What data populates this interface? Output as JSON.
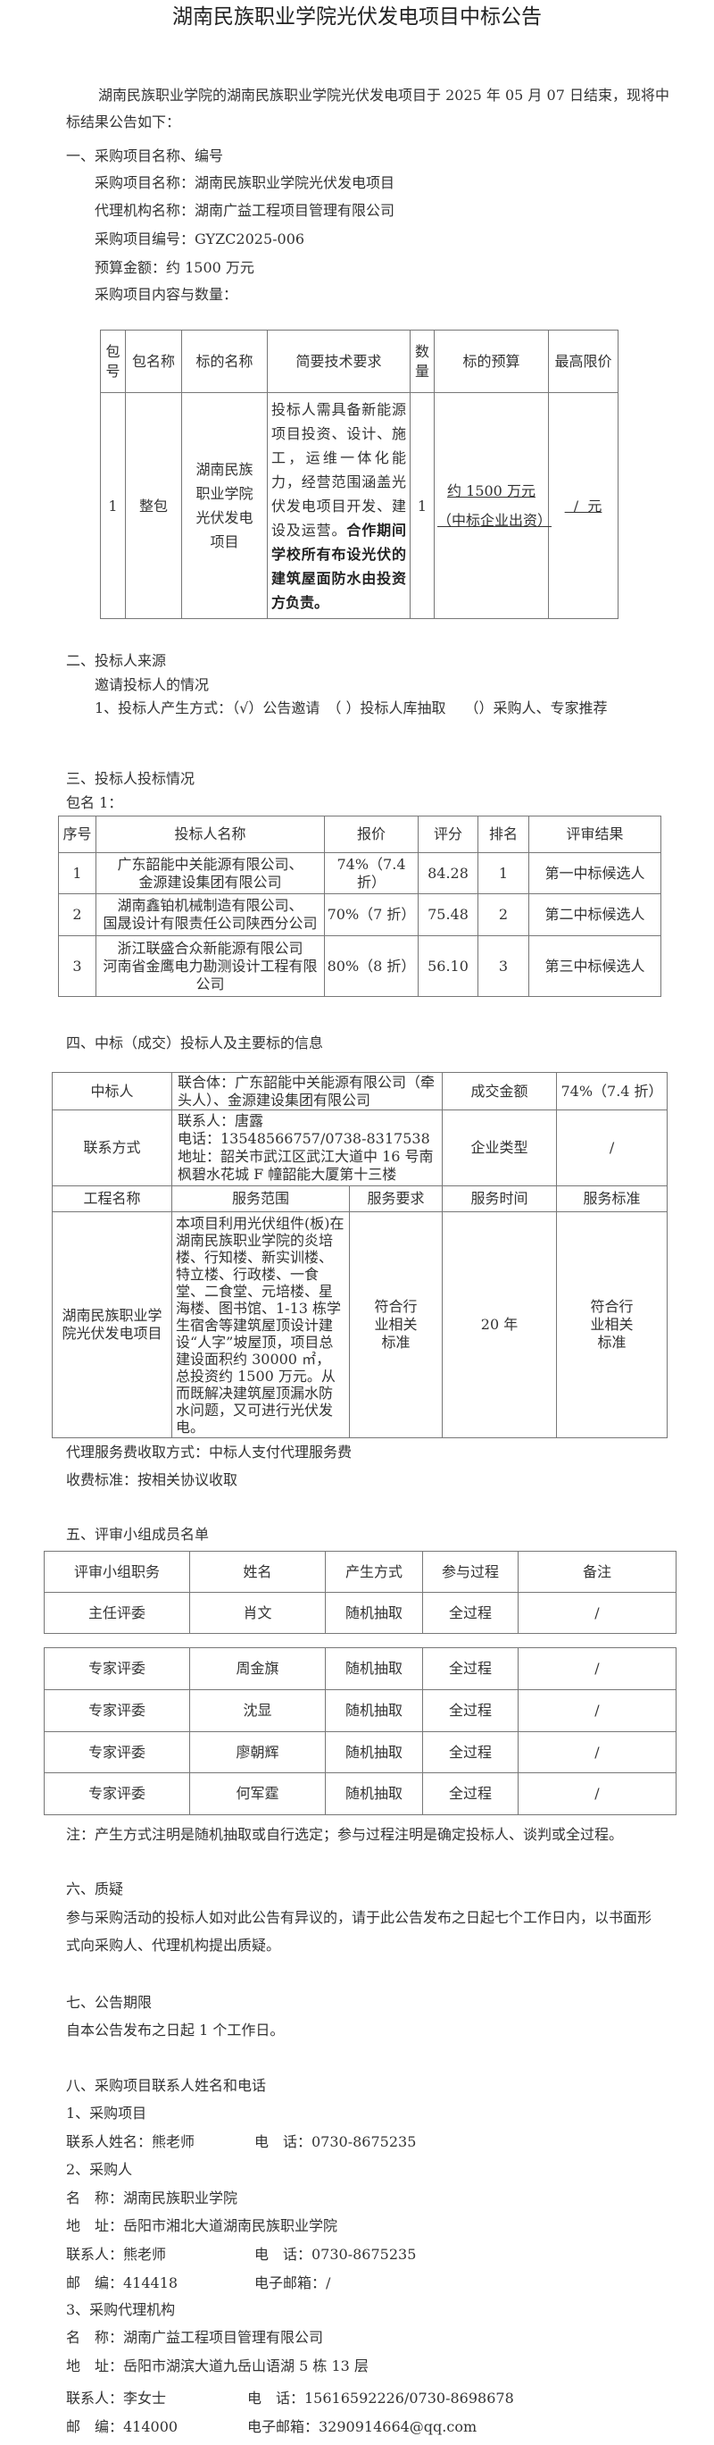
{
  "title": "湖南民族职业学院光伏发电项目中标公告",
  "intro": [
    "湖南民族职业学院的湖南民族职业学院光伏发电项目于 2025 年 05 月 07 日结束，现将中",
    "标结果公告如下："
  ],
  "s1": {
    "heading": "一、采购项目名称、编号",
    "items": [
      "采购项目名称：湖南民族职业学院光伏发电项目",
      "代理机构名称：湖南广益工程项目管理有限公司",
      "采购项目编号：GYZC2025-006",
      "预算金额：约 1500 万元",
      "采购项目内容与数量："
    ],
    "table": {
      "headers": [
        "包号",
        "包名称",
        "标的名称",
        "简要技术要求",
        "数量",
        "标的预算",
        "最高限价"
      ],
      "row": {
        "no": "1",
        "pkg": "整包",
        "name": "湖南民族职业学院光伏发电项目",
        "req": "投标人需具备新能源项目投资、设计、施工，运维一体化能力，经营范围涵盖光伏发电项目开发、建设及运营。",
        "req_bold": "合作期间学校所有布设光伏的建筑屋面防水由投资方负责。",
        "qty": "1",
        "budget": "约 1500 万元",
        "budget_note": "（中标企业出资）",
        "max_price": "  /  元"
      }
    }
  },
  "s2": {
    "heading": "二、投标人来源",
    "sub": "邀请投标人的情况",
    "method": "1、投标人产生方式：（√）公告邀请　（ ）投标人库抽取　 （）采购人、专家推荐"
  },
  "s3": {
    "heading": "三、投标人投标情况",
    "pkg": "包名 1：",
    "headers": [
      "序号",
      "投标人名称",
      "报价",
      "评分",
      "排名",
      "评审结果"
    ],
    "rows": [
      {
        "no": "1",
        "name1": "广东韶能中关能源有限公司、",
        "name2": "金源建设集团有限公司",
        "name3": "",
        "price": "74%（7.4 折）",
        "score": "84.28",
        "rank": "1",
        "result": "第一中标候选人"
      },
      {
        "no": "2",
        "name1": "湖南鑫铂机械制造有限公司、",
        "name2": "国晟设计有限责任公司陕西分公司",
        "name3": "",
        "price": "70%（7 折）",
        "score": "75.48",
        "rank": "2",
        "result": "第二中标候选人"
      },
      {
        "no": "3",
        "name1": "浙江联盛合众新能源有限公司",
        "name2": "河南省金鹰电力勘测设计工程有限",
        "name3": "公司",
        "price": "80%（8 折）",
        "score": "56.10",
        "rank": "3",
        "result": "第三中标候选人"
      }
    ]
  },
  "s4": {
    "heading": "四、中标（成交）投标人及主要标的信息",
    "winner_label": "中标人",
    "winner": "联合体：广东韶能中关能源有限公司（牵头人）、金源建设集团有限公司",
    "amount_label": "成交金额",
    "amount": "74%（7.4 折）",
    "contact_label": "联系方式",
    "contact_person": "联系人：唐露",
    "contact_phone": "电话：13548566757/0738-8317538",
    "contact_address": "地址：韶关市武江区武江大道中 16 号南枫碧水花城 F 幢韶能大厦第十三楼",
    "type_label": "企业类型",
    "type": "/",
    "headers": [
      "工程名称",
      "服务范围",
      "服务要求",
      "服务时间",
      "服务标准"
    ],
    "project": "湖南民族职业学院光伏发电项目",
    "scope": "本项目利用光伏组件(板)在湖南民族职业学院的炎培楼、行知楼、新实训楼、特立楼、行政楼、一食堂、二食堂、元培楼、星海楼、图书馆、1-13 栋学生宿舍等建筑屋顶设计建设“人字”坡屋顶，项目总建设面积约 30000 ㎡， 总投资约 1500 万元。从而既解决建筑屋顶漏水防水问题，又可进行光伏发电。",
    "requirement": "符合行业相关标准",
    "time": "20 年",
    "standard": "符合行业相关标准",
    "fee_method": "代理服务费收取方式：中标人支付代理服务费",
    "fee_standard": "收费标准：按相关协议收取"
  },
  "s5": {
    "heading": "五、评审小组成员名单",
    "headers": [
      "评审小组职务",
      "姓名",
      "产生方式",
      "参与过程",
      "备注"
    ],
    "rows": [
      [
        "主任评委",
        "肖文",
        "随机抽取",
        "全过程",
        "/"
      ],
      [
        "专家评委",
        "周金旗",
        "随机抽取",
        "全过程",
        "/"
      ],
      [
        "专家评委",
        "沈显",
        "随机抽取",
        "全过程",
        "/"
      ],
      [
        "专家评委",
        "廖朝辉",
        "随机抽取",
        "全过程",
        "/"
      ],
      [
        "专家评委",
        "何军霆",
        "随机抽取",
        "全过程",
        "/"
      ]
    ],
    "note": "注：产生方式注明是随机抽取或自行选定；参与过程注明是确定投标人、谈判或全过程。"
  },
  "s6": {
    "heading": "六、质疑",
    "text": [
      "参与采购活动的投标人如对此公告有异议的，请于此公告发布之日起七个工作日内，以书面形",
      "式向采购人、代理机构提出质疑。"
    ]
  },
  "s7": {
    "heading": "七、公告期限",
    "text": "自本公告发布之日起 1 个工作日。"
  },
  "s8": {
    "heading": "八、采购项目联系人姓名和电话",
    "p1": {
      "heading": "1、采购项目",
      "name": "联系人姓名：熊老师",
      "phone": "电　话：0730-8675235"
    },
    "p2": {
      "heading": "2、采购人",
      "name": "名　称：湖南民族职业学院",
      "address": "地　址：岳阳市湘北大道湖南民族职业学院",
      "contact": "联系人：熊老师",
      "phone": "电　话：0730-8675235",
      "zip": "邮　编：414418",
      "email": "电子邮箱：/"
    },
    "p3": {
      "heading": "3、采购代理机构",
      "name": "名　称：湖南广益工程项目管理有限公司",
      "address": "地　址：岳阳市湖滨大道九岳山语湖 5 栋 13 层",
      "contact": "联系人：李女士",
      "phone": "电　话：15616592226/0730-8698678",
      "zip": "邮　编：414000",
      "email": "电子邮箱：3290914664@qq.com"
    }
  }
}
